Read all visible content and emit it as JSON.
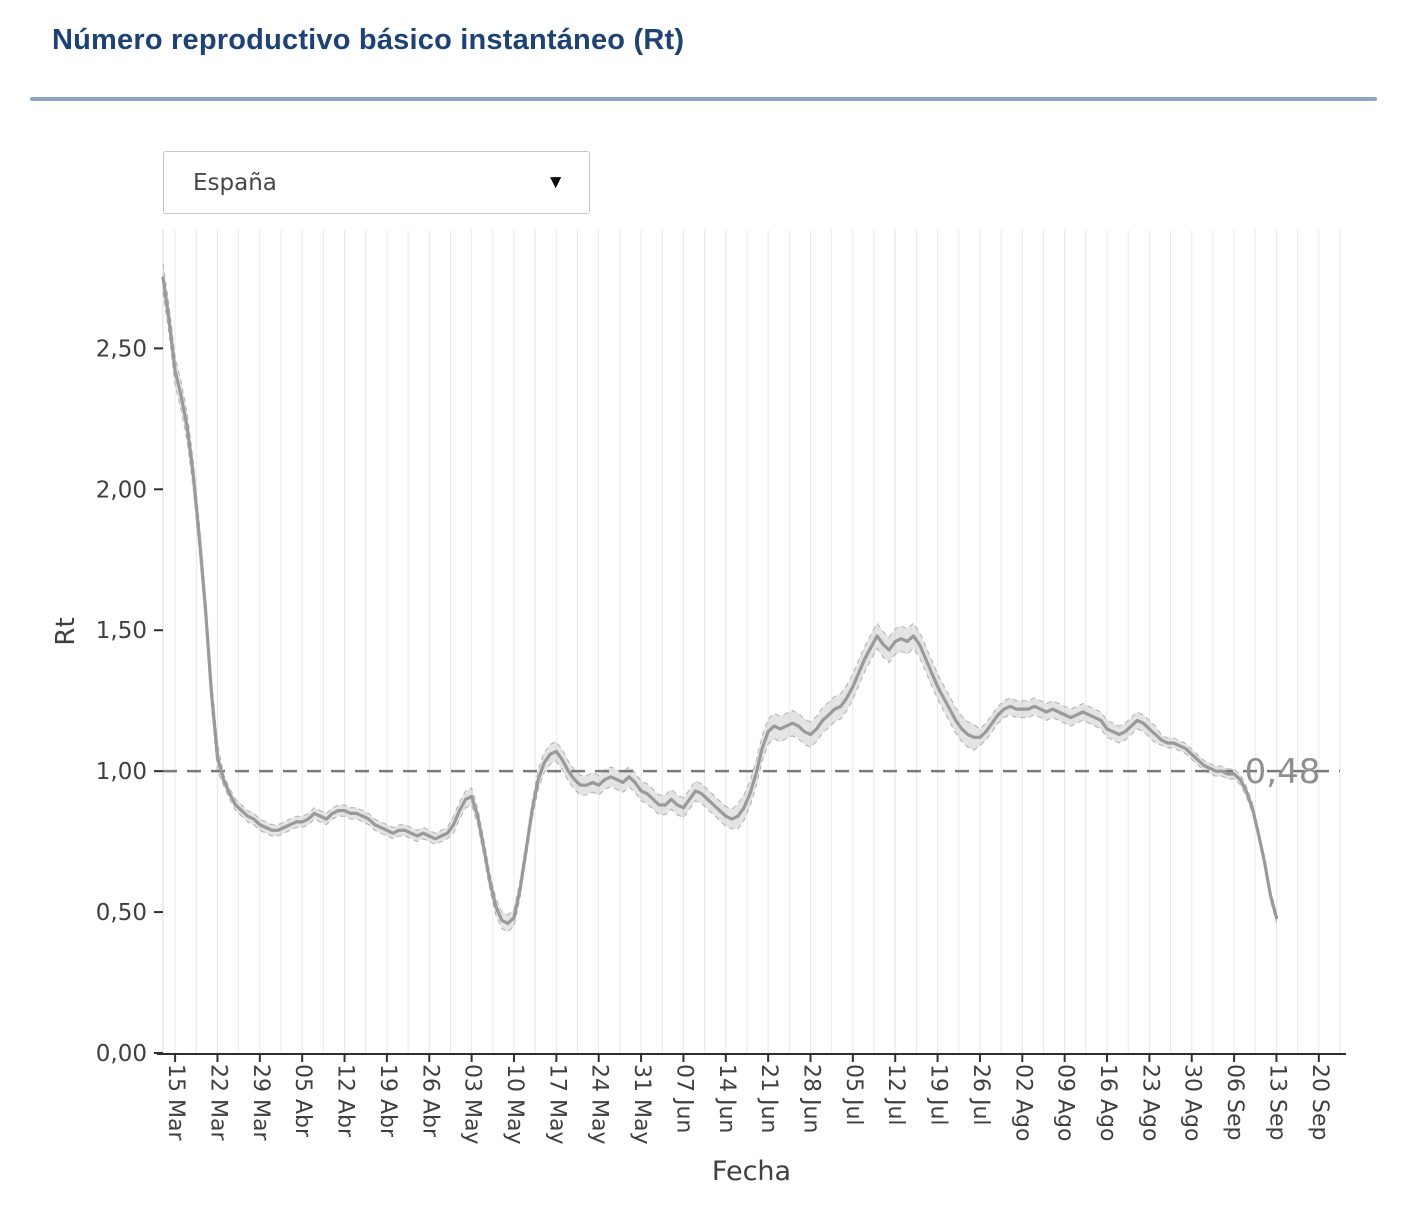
{
  "header": {
    "title": "Número reproductivo básico instantáneo (Rt)",
    "title_color": "#1d4273",
    "divider_color": "#8ca7c4"
  },
  "controls": {
    "region_select": {
      "value": "España",
      "caret_icon": "▼"
    }
  },
  "chart_data": {
    "type": "line",
    "title": "",
    "xlabel": "Fecha",
    "ylabel": "Rt",
    "xlim": [
      0,
      194.5
    ],
    "ylim": [
      0,
      2.92
    ],
    "grid": {
      "on": true,
      "orientation": "vertical",
      "color": "#e8e8e8",
      "start_day": 2,
      "step_days": 3.5
    },
    "yticks": {
      "values": [
        0,
        0.5,
        1.0,
        1.5,
        2.0,
        2.5
      ],
      "labels": [
        "0,00",
        "0,50",
        "1,00",
        "1,50",
        "2,00",
        "2,50"
      ]
    },
    "xticks": {
      "days": [
        2,
        9,
        16,
        23,
        30,
        37,
        44,
        51,
        58,
        65,
        72,
        79,
        86,
        93,
        100,
        107,
        114,
        121,
        128,
        135,
        142,
        149,
        156,
        163,
        170,
        177,
        184,
        191
      ],
      "labels": [
        "15 Mar",
        "22 Mar",
        "29 Mar",
        "05 Abr",
        "12 Abr",
        "19 Abr",
        "26 Abr",
        "03 May",
        "10 May",
        "17 May",
        "24 May",
        "31 May",
        "07 Jun",
        "14 Jun",
        "21 Jun",
        "28 Jun",
        "05 Jul",
        "12 Jul",
        "19 Jul",
        "26 Jul",
        "02 Ago",
        "09 Ago",
        "16 Ago",
        "23 Ago",
        "30 Ago",
        "06 Sep",
        "13 Sep",
        "20 Sep"
      ]
    },
    "reference_line": {
      "value": 1.0,
      "style": "dashed",
      "color": "#7b7b7b"
    },
    "annotation": {
      "text": "0,48",
      "x_day": 185,
      "y_value": 1.0,
      "color": "#8f8f8f"
    },
    "line_color": "#9a9a9a",
    "band_fill_color": "#c4c4c4",
    "band_edge_color": "#9f9f9f",
    "axis_color": "#2f2f2f",
    "tick_label_color": "#3f3f3f",
    "legend": "none",
    "series": [
      {
        "name": "Rt",
        "x_start": 0,
        "x_step": 1,
        "values": [
          2.75,
          2.6,
          2.42,
          2.33,
          2.22,
          2.05,
          1.83,
          1.58,
          1.28,
          1.05,
          0.97,
          0.92,
          0.88,
          0.86,
          0.84,
          0.83,
          0.81,
          0.8,
          0.79,
          0.79,
          0.8,
          0.81,
          0.82,
          0.82,
          0.83,
          0.85,
          0.84,
          0.83,
          0.85,
          0.86,
          0.86,
          0.85,
          0.85,
          0.84,
          0.83,
          0.81,
          0.8,
          0.79,
          0.78,
          0.79,
          0.79,
          0.78,
          0.77,
          0.78,
          0.77,
          0.76,
          0.77,
          0.78,
          0.81,
          0.86,
          0.9,
          0.91,
          0.84,
          0.73,
          0.61,
          0.52,
          0.47,
          0.46,
          0.48,
          0.58,
          0.72,
          0.86,
          0.97,
          1.03,
          1.06,
          1.07,
          1.04,
          1.0,
          0.97,
          0.95,
          0.95,
          0.96,
          0.95,
          0.97,
          0.98,
          0.97,
          0.96,
          0.98,
          0.96,
          0.93,
          0.92,
          0.9,
          0.88,
          0.88,
          0.9,
          0.88,
          0.87,
          0.9,
          0.93,
          0.92,
          0.9,
          0.88,
          0.86,
          0.84,
          0.83,
          0.84,
          0.87,
          0.92,
          0.99,
          1.08,
          1.14,
          1.16,
          1.15,
          1.16,
          1.17,
          1.16,
          1.14,
          1.13,
          1.15,
          1.18,
          1.2,
          1.22,
          1.23,
          1.26,
          1.3,
          1.35,
          1.4,
          1.44,
          1.48,
          1.45,
          1.43,
          1.46,
          1.47,
          1.46,
          1.48,
          1.45,
          1.4,
          1.35,
          1.3,
          1.26,
          1.22,
          1.18,
          1.15,
          1.13,
          1.12,
          1.12,
          1.14,
          1.17,
          1.2,
          1.22,
          1.23,
          1.22,
          1.22,
          1.22,
          1.23,
          1.22,
          1.21,
          1.22,
          1.21,
          1.2,
          1.19,
          1.2,
          1.21,
          1.2,
          1.19,
          1.18,
          1.15,
          1.14,
          1.13,
          1.14,
          1.16,
          1.18,
          1.17,
          1.15,
          1.13,
          1.11,
          1.1,
          1.1,
          1.09,
          1.08,
          1.06,
          1.04,
          1.02,
          1.01,
          1.0,
          1.0,
          0.99,
          0.99,
          0.97,
          0.93,
          0.87,
          0.78,
          0.68,
          0.56,
          0.48
        ]
      }
    ],
    "band_segments": [
      {
        "from": 0,
        "to": 10,
        "hw": 0.05
      },
      {
        "from": 10,
        "to": 48,
        "hw": 0.02
      },
      {
        "from": 48,
        "to": 62,
        "hw": 0.03
      },
      {
        "from": 62,
        "to": 95,
        "hw": 0.035
      },
      {
        "from": 95,
        "to": 135,
        "hw": 0.045
      },
      {
        "from": 135,
        "to": 165,
        "hw": 0.03
      },
      {
        "from": 165,
        "to": 186,
        "hw": 0.018
      }
    ]
  }
}
